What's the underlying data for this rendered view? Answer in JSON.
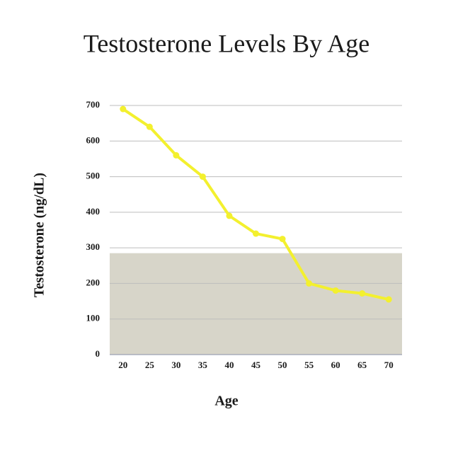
{
  "chart_data": {
    "type": "line",
    "title": "Testosterone Levels By Age",
    "x_label": "Age",
    "y_label": "Testosterone (ng/dL)",
    "categories": [
      "20",
      "25",
      "30",
      "35",
      "40",
      "45",
      "50",
      "55",
      "60",
      "65",
      "70"
    ],
    "values": [
      690,
      640,
      560,
      500,
      390,
      340,
      325,
      200,
      180,
      172,
      155
    ],
    "color": "#f3f02e",
    "shaded_range": [
      0,
      285
    ],
    "shaded_color": "#d7d5c9",
    "ylim": [
      0,
      700
    ],
    "yticks": [
      0,
      100,
      200,
      300,
      400,
      500,
      600,
      700
    ],
    "grid": true
  }
}
